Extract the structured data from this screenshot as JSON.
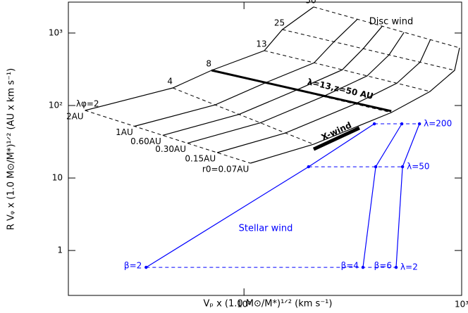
{
  "chart_data": {
    "type": "line",
    "xlog": true,
    "ylog": true,
    "xlim": [
      15.6,
      1000
    ],
    "ylim": [
      0.24,
      2670
    ],
    "xticks": [
      {
        "value": 100,
        "label": "10²"
      },
      {
        "value": 1000,
        "label": "10³"
      }
    ],
    "yticks": [
      1,
      10,
      {
        "value": 100,
        "label": "10²"
      },
      {
        "value": 1000,
        "label": "10³"
      }
    ],
    "xlabel": "Vₚ x (1.0 M⊙/M*)¹ᐟ² (km s⁻¹)",
    "ylabel": "R Vᵩ x (1.0 M⊙/M*)¹ᐟ² (AU x km s⁻¹)",
    "disc_wind": {
      "label": "Disc wind",
      "color": "#000000",
      "lambda_labels": [
        "λφ=2",
        "4",
        "8",
        "13",
        "25",
        "50"
      ],
      "series": [
        {
          "name": "2AU",
          "x": [
            18.6,
            47.1,
            71.0,
            124,
            150,
            209
          ],
          "y": [
            85.5,
            175,
            306,
            572,
            1118,
            2287
          ]
        },
        {
          "name": "1AU",
          "x": [
            31.4,
            73.7,
            125,
            210,
            259,
            332
          ],
          "y": [
            51.7,
            102,
            205,
            388,
            758,
            1550
          ]
        },
        {
          "name": "0.60AU",
          "x": [
            42.3,
            94.9,
            174,
            283,
            353,
            432
          ],
          "y": [
            38.8,
            75.5,
            163,
            311,
            608,
            1243
          ]
        },
        {
          "name": "0.30AU",
          "x": [
            55.0,
            119,
            231,
            368,
            464,
            544
          ],
          "y": [
            30.2,
            57.7,
            133,
            256,
            500,
            1023
          ]
        },
        {
          "name": "0.15AU",
          "x": [
            75.3,
            155,
            324,
            504,
            644,
            718
          ],
          "y": [
            22.4,
            41.8,
            105,
            203,
            396,
            810
          ]
        },
        {
          "name": "r0=0.07AU",
          "x": [
            107,
            209,
            475,
            715,
            928,
            978
          ],
          "y": [
            16.0,
            29.2,
            80.0,
            156,
            306,
            625
          ]
        }
      ]
    },
    "thick_lines": [
      {
        "label": "λ=13,z=50 AU",
        "x": [
          71.0,
          475
        ],
        "y": [
          306,
          83.6
        ],
        "width": 3
      },
      {
        "label": "X-wind",
        "x": [
          209,
          339
        ],
        "y": [
          25.0,
          48.9
        ],
        "width": 5
      }
    ],
    "stellar_wind": {
      "label": "Stellar wind",
      "color": "#0000ff",
      "lambda_labels": [
        "λ=2",
        "λ=50",
        "λ=200"
      ],
      "series": [
        {
          "name": "β=2",
          "x": [
            35.5,
            198,
            397
          ],
          "y": [
            0.585,
            14.3,
            55.9
          ]
        },
        {
          "name": "β=4",
          "x": [
            352,
            403,
            531
          ],
          "y": [
            0.585,
            14.3,
            55.9
          ]
        },
        {
          "name": "β=6",
          "x": [
            500,
            535,
            640
          ],
          "y": [
            0.585,
            14.3,
            55.9
          ]
        }
      ]
    }
  }
}
